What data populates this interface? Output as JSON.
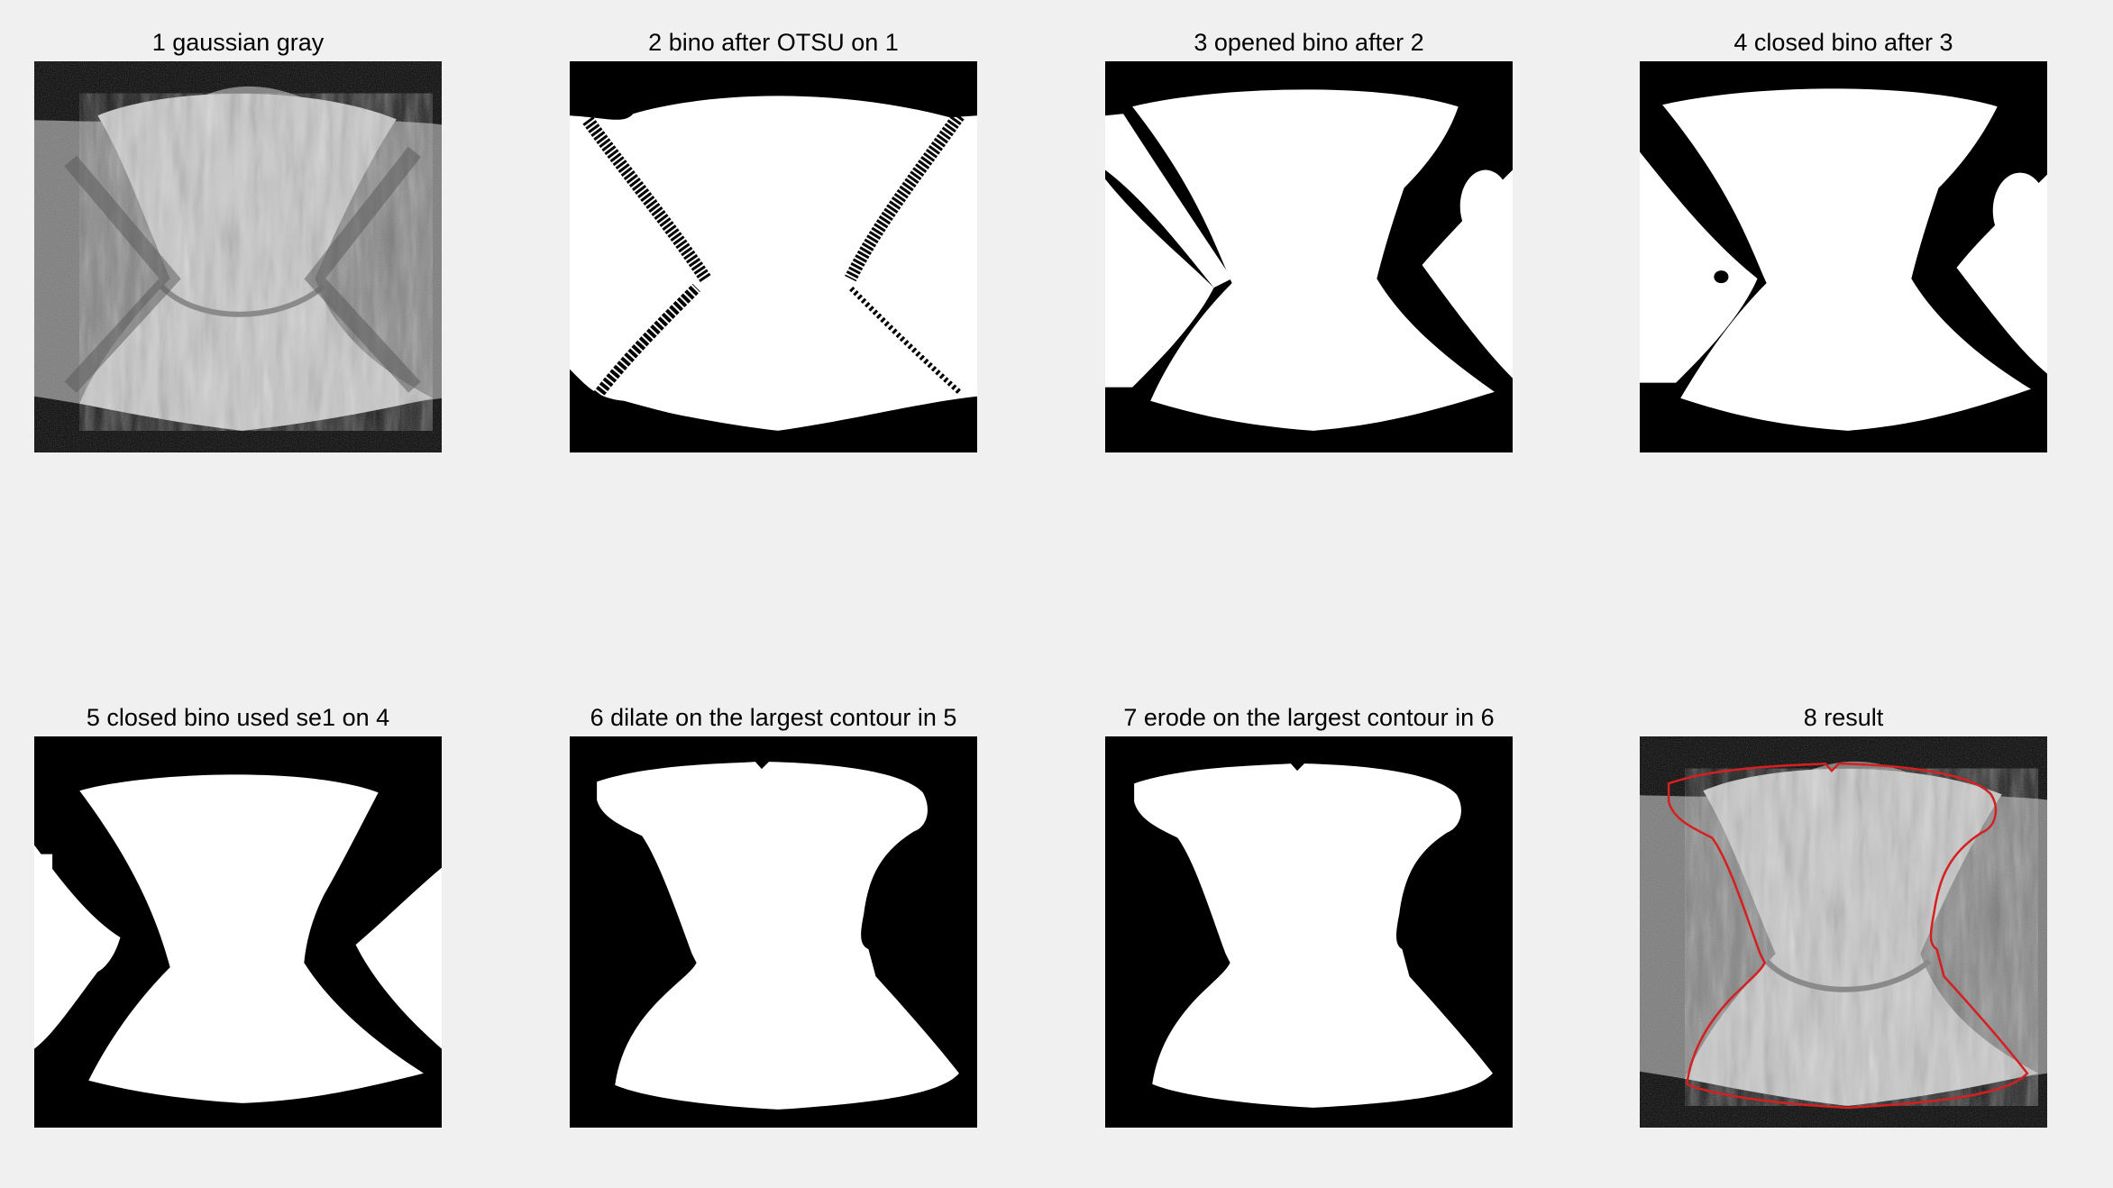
{
  "figure": {
    "background": "#f0f0f0",
    "panels": [
      {
        "title": "1 gaussian gray",
        "kind": "gray"
      },
      {
        "title": "2 bino after OTSU on 1",
        "kind": "otsu"
      },
      {
        "title": "3 opened bino after 2",
        "kind": "opened"
      },
      {
        "title": "4 closed bino after 3",
        "kind": "closed"
      },
      {
        "title": "5 closed bino used se1 on 4",
        "kind": "closed-se1"
      },
      {
        "title": "6 dilate on the largest contour in 5",
        "kind": "contour"
      },
      {
        "title": "7 erode on the largest contour in 6",
        "kind": "contour"
      },
      {
        "title": "8 result",
        "kind": "result"
      }
    ],
    "colors": {
      "outline": "#d42020",
      "mask": "#ffffff",
      "backdrop": "#000000"
    }
  }
}
